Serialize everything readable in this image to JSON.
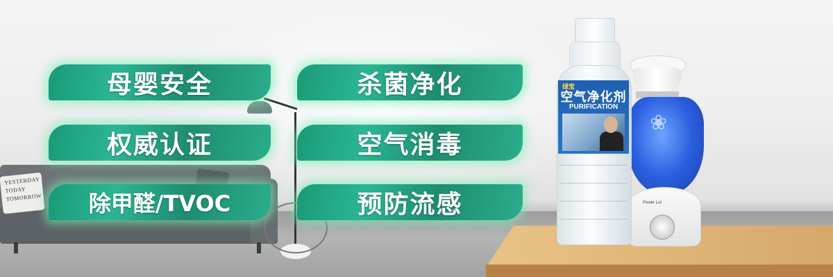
{
  "labels": [
    {
      "text": "母婴安全"
    },
    {
      "text": "杀菌净化"
    },
    {
      "text": "权威认证"
    },
    {
      "text": "空气消毒"
    },
    {
      "text": "除甲醛/TVOC"
    },
    {
      "text": "预防流感"
    }
  ],
  "pillow": {
    "line1": "YESTERDAY",
    "line2": "TODAY",
    "line3": "TOMORROW"
  },
  "bottle": {
    "brand": "绿宝",
    "title": "空气净化剂",
    "subtitle": "PURIFICATION"
  },
  "humidifier": {
    "tag": "Power  Lot"
  },
  "colors": {
    "label_green": "#2bb693",
    "label_glow": "#78f0b4",
    "bottle_label_blue": "#1e5fb0",
    "tank_blue": "#2b5fe0",
    "table_wood": "#d6a86a"
  }
}
